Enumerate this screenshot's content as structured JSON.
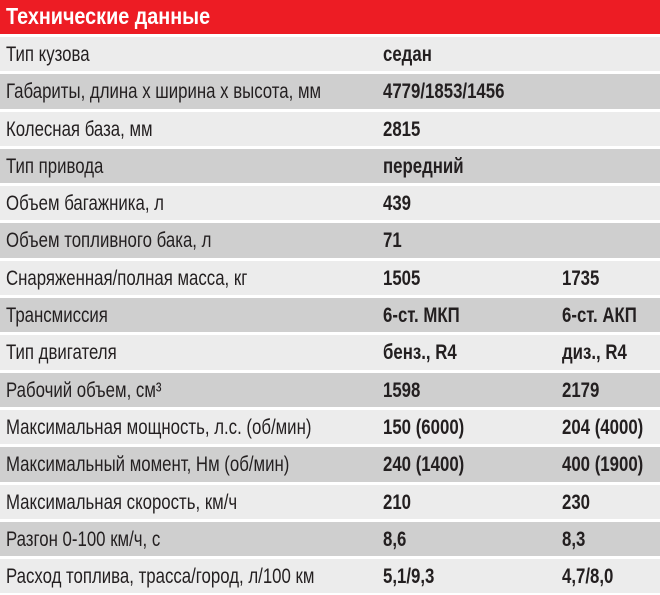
{
  "title": "Технические данные",
  "colors": {
    "header": "#ed1c24",
    "row_light": "#ececec",
    "row_dark": "#cfcfcf"
  },
  "rows": [
    {
      "label": "Тип кузова",
      "v1": "седан",
      "v2": ""
    },
    {
      "label": "Габариты, длина х ширина х высота, мм",
      "v1": "4779/1853/1456",
      "v2": ""
    },
    {
      "label": "Колесная база, мм",
      "v1": "2815",
      "v2": ""
    },
    {
      "label": "Тип привода",
      "v1": "передний",
      "v2": ""
    },
    {
      "label": "Объем багажника, л",
      "v1": "439",
      "v2": ""
    },
    {
      "label": "Объем топливного бака, л",
      "v1": "71",
      "v2": ""
    },
    {
      "label": "Снаряженная/полная масса, кг",
      "v1": "1505",
      "v2": "1735"
    },
    {
      "label": "Трансмиссия",
      "v1": "6-ст. МКП",
      "v2": "6-ст. АКП"
    },
    {
      "label": "Тип двигателя",
      "v1": "бенз., R4",
      "v2": "диз., R4"
    },
    {
      "label": "Рабочий объем, см³",
      "v1": "1598",
      "v2": "2179"
    },
    {
      "label": "Максимальная мощность, л.с. (об/мин)",
      "v1": "150 (6000)",
      "v2": "204 (4000)"
    },
    {
      "label": "Максимальный момент, Нм (об/мин)",
      "v1": "240 (1400)",
      "v2": "400 (1900)"
    },
    {
      "label": "Максимальная скорость, км/ч",
      "v1": "210",
      "v2": "230"
    },
    {
      "label": "Разгон 0-100 км/ч, с",
      "v1": "8,6",
      "v2": "8,3"
    },
    {
      "label": "Расход топлива, трасса/город, л/100 км",
      "v1": "5,1/9,3",
      "v2": "4,7/8,0"
    }
  ]
}
